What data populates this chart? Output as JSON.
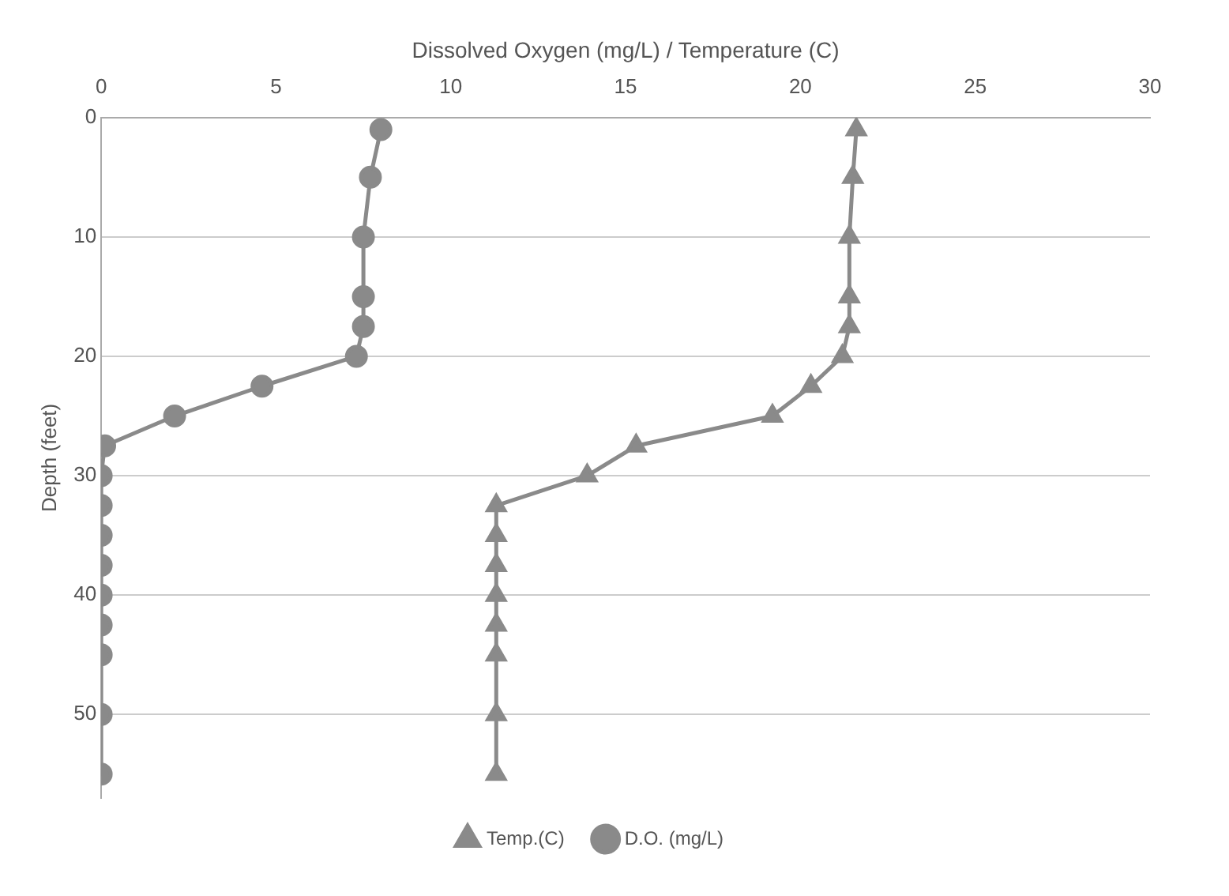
{
  "chart_data": {
    "type": "line",
    "xlabel": "Dissolved Oxygen (mg/L) / Temperature (C)",
    "ylabel": "Depth (feet)",
    "xlim": [
      0,
      30
    ],
    "xticks": [
      0,
      5,
      10,
      15,
      20,
      25,
      30
    ],
    "ylim": [
      57,
      0
    ],
    "yticks": [
      0,
      10,
      20,
      30,
      40,
      50
    ],
    "grid": "y",
    "legend": "bottom",
    "line_style": "solid",
    "series": [
      {
        "name": "Temp.(C)",
        "color": "#8a8a8a",
        "marker": "triangle",
        "x": [
          21.6,
          21.5,
          21.4,
          21.4,
          21.4,
          21.2,
          20.3,
          19.2,
          15.3,
          13.9,
          11.3,
          11.3,
          11.3,
          11.3,
          11.3,
          11.3,
          11.3,
          11.3
        ],
        "values": [
          1,
          5,
          10,
          15,
          17.5,
          20,
          22.5,
          25,
          27.5,
          30,
          32.5,
          35,
          37.5,
          40,
          42.5,
          45,
          50,
          55
        ]
      },
      {
        "name": "D.O. (mg/L)",
        "color": "#8a8a8a",
        "marker": "circle",
        "x": [
          8,
          7.7,
          7.5,
          7.5,
          7.5,
          7.3,
          4.6,
          2.1,
          0.1,
          0,
          0,
          0,
          0,
          0,
          0,
          0,
          0,
          0
        ],
        "values": [
          1,
          5,
          10,
          15,
          17.5,
          20,
          22.5,
          25,
          27.5,
          30,
          32.5,
          35,
          37.5,
          40,
          42.5,
          45,
          50,
          55
        ]
      }
    ]
  }
}
